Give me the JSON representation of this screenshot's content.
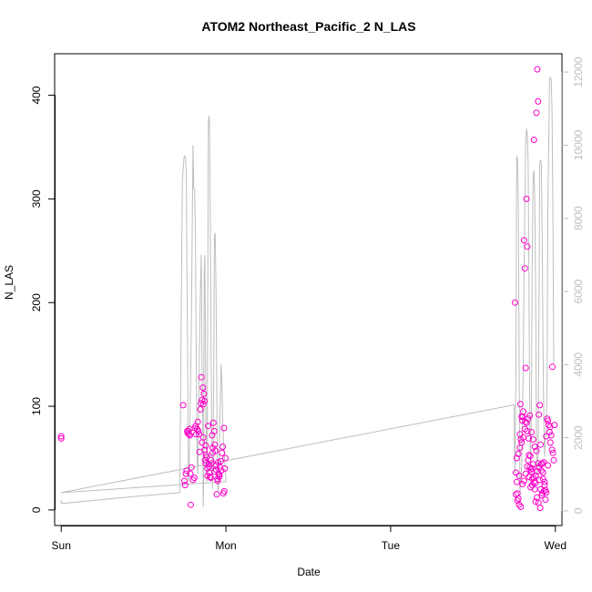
{
  "chart_data": {
    "type": "scatter",
    "title": "ATOM2 Northeast_Pacific_2 N_LAS",
    "xlabel": "Date",
    "ylabel": "N_LAS",
    "x_ticks": [
      {
        "label": "Sun",
        "value": 0
      },
      {
        "label": "Mon",
        "value": 1
      },
      {
        "label": "Tue",
        "value": 2
      },
      {
        "label": "Wed",
        "value": 3
      }
    ],
    "xlim": [
      -0.04,
      3.04
    ],
    "ylim": [
      -15,
      440
    ],
    "y_ticks": [
      0,
      100,
      200,
      300,
      400
    ],
    "y2lim": [
      -400,
      12500
    ],
    "y2_ticks": [
      0,
      2000,
      4000,
      6000,
      8000,
      10000,
      12000
    ],
    "grid": false,
    "colors": {
      "points": "#ff00c8",
      "line": "#bebebe",
      "axis": "#000000",
      "right_axis": "#bebebe"
    },
    "series": [
      {
        "marker": "circle",
        "axis": "left",
        "x": [
          0.0,
          0.0,
          0.741,
          0.748,
          0.752,
          0.757,
          0.761,
          0.765,
          0.768,
          0.772,
          0.776,
          0.779,
          0.781,
          0.784,
          0.786,
          0.79,
          0.8,
          0.808,
          0.812,
          0.816,
          0.82,
          0.825,
          0.829,
          0.833,
          0.837,
          0.84,
          0.845,
          0.848,
          0.851,
          0.855,
          0.86,
          0.863,
          0.866,
          0.87,
          0.873,
          0.877,
          0.88,
          0.884,
          0.888,
          0.892,
          0.895,
          0.899,
          0.904,
          0.908,
          0.912,
          0.916,
          0.92,
          0.924,
          0.928,
          0.932,
          0.936,
          0.94,
          0.944,
          0.948,
          0.952,
          0.956,
          0.96,
          0.964,
          0.968,
          0.972,
          0.976,
          0.98,
          0.984,
          0.988,
          0.99,
          0.993,
          0.997,
          0.855,
          0.862,
          0.87,
          0.878,
          0.888,
          0.898,
          0.91,
          0.92,
          0.93,
          0.94,
          0.95,
          0.96,
          2.755,
          2.76,
          2.765,
          2.77,
          2.775,
          2.78,
          2.785,
          2.79,
          2.795,
          2.8,
          2.805,
          2.81,
          2.815,
          2.82,
          2.825,
          2.83,
          2.835,
          2.84,
          2.845,
          2.85,
          2.855,
          2.86,
          2.865,
          2.87,
          2.875,
          2.88,
          2.885,
          2.89,
          2.895,
          2.9,
          2.905,
          2.91,
          2.915,
          2.92,
          2.925,
          2.93,
          2.935,
          2.94,
          2.945,
          2.95,
          2.955,
          2.96,
          2.965,
          2.97,
          2.975,
          2.98,
          2.985,
          2.99,
          2.76,
          2.77,
          2.78,
          2.79,
          2.8,
          2.81,
          2.82,
          2.83,
          2.84,
          2.85,
          2.86,
          2.87,
          2.88,
          2.89,
          2.9,
          2.91,
          2.92,
          2.93,
          2.94,
          2.765,
          2.775,
          2.785,
          2.795,
          2.805,
          2.815,
          2.825,
          2.835,
          2.845,
          2.855,
          2.865,
          2.875,
          2.885,
          2.895,
          2.905,
          2.915,
          2.925,
          2.788,
          2.802,
          2.818,
          2.828,
          2.838,
          2.848,
          2.858,
          2.868,
          2.878,
          2.888,
          2.898,
          2.908,
          2.918,
          2.945,
          2.968,
          2.982,
          2.995,
          2.935,
          2.955
        ],
        "y": [
          71,
          69,
          101,
          28,
          24,
          35,
          38,
          76,
          74,
          76,
          73,
          78,
          72,
          35,
          5,
          41,
          29,
          31,
          79,
          81,
          73,
          78,
          85,
          76,
          73,
          56,
          97,
          103,
          128,
          106,
          118,
          102,
          112,
          105,
          48,
          45,
          53,
          51,
          40,
          81,
          44,
          36,
          32,
          31,
          45,
          72,
          60,
          84,
          76,
          63,
          57,
          39,
          15,
          30,
          46,
          35,
          32,
          41,
          47,
          38,
          55,
          61,
          16,
          79,
          18,
          40,
          50,
          65,
          70,
          58,
          62,
          33,
          42,
          48,
          55,
          37,
          43,
          28,
          34,
          200,
          36,
          27,
          16,
          11,
          33,
          73,
          68,
          90,
          86,
          95,
          260,
          233,
          137,
          300,
          254,
          48,
          53,
          41,
          39,
          37,
          30,
          44,
          357,
          20,
          8,
          383,
          425,
          394,
          92,
          101,
          63,
          44,
          45,
          30,
          46,
          27,
          10,
          17,
          88,
          86,
          82,
          75,
          65,
          72,
          58,
          55,
          48,
          15,
          9,
          5,
          3,
          25,
          28,
          35,
          42,
          32,
          22,
          24,
          27,
          33,
          37,
          41,
          20,
          16,
          18,
          19,
          50,
          54,
          60,
          65,
          70,
          78,
          84,
          88,
          91,
          75,
          68,
          61,
          57,
          45,
          29,
          38,
          36,
          102,
          90,
          85,
          76,
          69,
          52,
          40,
          31,
          26,
          12,
          7,
          2,
          14,
          71,
          80,
          138,
          82,
          24,
          43
        ]
      },
      {
        "type": "line",
        "axis": "right",
        "x": [
          0.0,
          0.0,
          0.46,
          0.72,
          0.735,
          0.745,
          0.75,
          0.755,
          0.76,
          0.762,
          0.768,
          0.772,
          0.776,
          0.78,
          0.79,
          0.8,
          0.805,
          0.81,
          0.815,
          0.82,
          0.825,
          0.83,
          0.835,
          0.84,
          0.845,
          0.85,
          0.855,
          0.86,
          0.862,
          0.865,
          0.868,
          0.872,
          0.875,
          0.878,
          0.882,
          0.885,
          0.889,
          0.893,
          0.896,
          0.9,
          0.905,
          0.91,
          0.915,
          0.918,
          0.922,
          0.926,
          0.93,
          0.935,
          0.94,
          0.945,
          0.948,
          0.952,
          0.956,
          0.96,
          0.965,
          0.97,
          0.975,
          0.98,
          0.985,
          0.99,
          0.995,
          1.0,
          0.0,
          2.75,
          2.75,
          2.755,
          2.76,
          2.765,
          2.77,
          2.775,
          2.78,
          2.785,
          2.79,
          2.795,
          2.8,
          2.805,
          2.81,
          2.815,
          2.82,
          2.825,
          2.83,
          2.835,
          2.84,
          2.845,
          2.85,
          2.855,
          2.86,
          2.865,
          2.87,
          2.875,
          2.88,
          2.885,
          2.89,
          2.895,
          2.9,
          2.905,
          2.91,
          2.915,
          2.92,
          2.925,
          2.93,
          2.935,
          2.94,
          2.945,
          2.95,
          2.955,
          2.96,
          2.965,
          2.97,
          2.975,
          2.98,
          2.985,
          2.99
        ],
        "y": [
          300,
          200,
          400,
          500,
          9000,
          9650,
          9700,
          9650,
          9000,
          7500,
          4000,
          800,
          1000,
          2000,
          5000,
          10000,
          8800,
          8800,
          7500,
          4000,
          1500,
          1000,
          3000,
          4500,
          6000,
          7000,
          4000,
          2000,
          100,
          900,
          6500,
          7000,
          5000,
          2800,
          1600,
          800,
          5000,
          10500,
          10800,
          10700,
          8000,
          4000,
          2000,
          600,
          1500,
          4000,
          7500,
          7600,
          6000,
          3000,
          1000,
          500,
          800,
          1600,
          2800,
          4000,
          3500,
          2500,
          1900,
          1600,
          1200,
          800,
          500,
          2900,
          2000,
          1000,
          3500,
          9700,
          9600,
          8500,
          4000,
          500,
          800,
          1200,
          2500,
          4000,
          6500,
          8500,
          10000,
          10450,
          10300,
          9500,
          6000,
          2500,
          1200,
          3000,
          7000,
          9200,
          9300,
          8500,
          6000,
          2000,
          1000,
          1500,
          5000,
          9500,
          9600,
          9500,
          7500,
          4500,
          2500,
          1500,
          2000,
          2500,
          3500,
          8500,
          10000,
          11800,
          11850,
          11800,
          11000,
          8000,
          4000
        ]
      }
    ]
  }
}
